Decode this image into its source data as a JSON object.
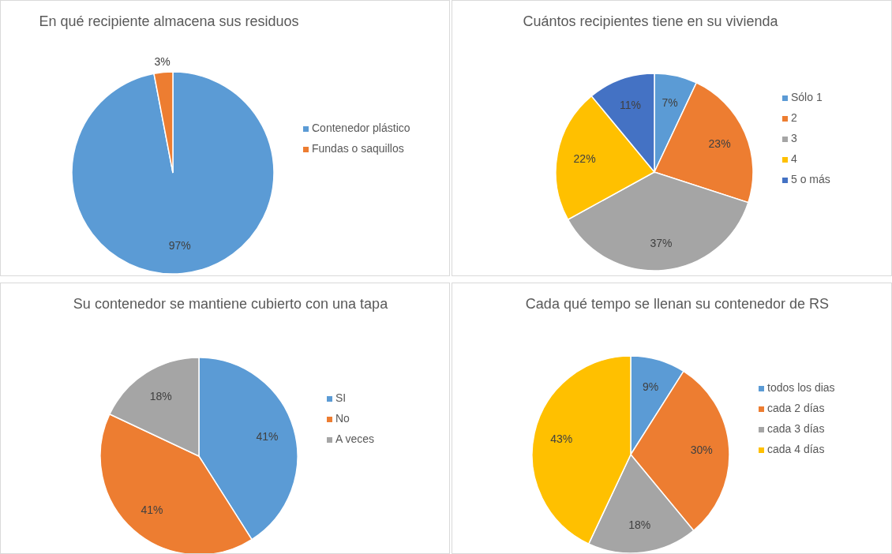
{
  "chart_data": [
    {
      "type": "pie",
      "title": "En qué recipiente almacena sus residuos",
      "categories": [
        "Contenedor plástico",
        "Fundas o saquillos"
      ],
      "values": [
        97,
        3
      ],
      "colors": [
        "#5b9bd5",
        "#ed7d31"
      ],
      "value_labels": [
        "97%",
        "3%"
      ],
      "legend": "right"
    },
    {
      "type": "pie",
      "title": "Cuántos recipientes tiene en su vivienda",
      "categories": [
        "Sólo 1",
        "2",
        "3",
        "4",
        "5 o más"
      ],
      "values": [
        7,
        23,
        37,
        22,
        11
      ],
      "colors": [
        "#5b9bd5",
        "#ed7d31",
        "#a5a5a5",
        "#ffc000",
        "#4472c4"
      ],
      "value_labels": [
        "7%",
        "23%",
        "37%",
        "22%",
        "11%"
      ],
      "legend": "right"
    },
    {
      "type": "pie",
      "title": "Su contenedor se mantiene cubierto con una tapa",
      "categories": [
        "SI",
        "No",
        "A veces"
      ],
      "values": [
        41,
        41,
        18
      ],
      "colors": [
        "#5b9bd5",
        "#ed7d31",
        "#a5a5a5"
      ],
      "value_labels": [
        "41%",
        "41%",
        "18%"
      ],
      "legend": "right"
    },
    {
      "type": "pie",
      "title": "Cada qué tempo se llenan su contenedor de RS",
      "categories": [
        "todos los dias",
        "cada 2 días",
        "cada 3 días",
        "cada 4 días"
      ],
      "values": [
        9,
        30,
        18,
        43
      ],
      "colors": [
        "#5b9bd5",
        "#ed7d31",
        "#a5a5a5",
        "#ffc000"
      ],
      "value_labels": [
        "9%",
        "30%",
        "18%",
        "43%"
      ],
      "legend": "right"
    }
  ]
}
